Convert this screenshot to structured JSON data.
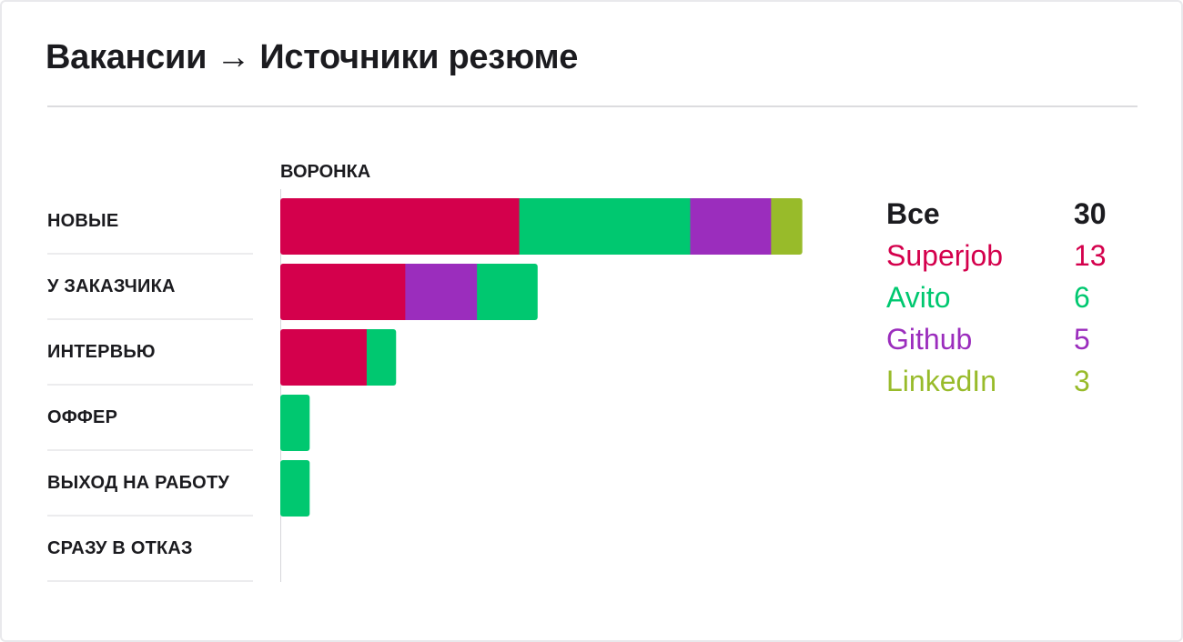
{
  "title": "Вакансии → Источники резюме",
  "funnel_label": "ВОРОНКА",
  "stages": [
    "НОВЫЕ",
    "У ЗАКАЗЧИКА",
    "ИНТЕРВЬЮ",
    "ОФФЕР",
    "ВЫХОД НА РАБОТУ",
    "СРАЗУ В ОТКАЗ"
  ],
  "legend": {
    "total": {
      "name": "Все",
      "value": "30"
    },
    "items": [
      {
        "name": "Superjob",
        "value": "13",
        "color": "#d4004c"
      },
      {
        "name": "Avito",
        "value": "6",
        "color": "#00c870"
      },
      {
        "name": "Github",
        "value": "5",
        "color": "#9b2dbd"
      },
      {
        "name": "LinkedIn",
        "value": "3",
        "color": "#98bb2a"
      }
    ]
  },
  "chart_data": {
    "type": "bar",
    "orientation": "horizontal",
    "stacked": true,
    "categories": [
      "НОВЫЕ",
      "У ЗАКАЗЧИКА",
      "ИНТЕРВЬЮ",
      "ОФФЕР",
      "ВЫХОД НА РАБОТУ",
      "СРАЗУ В ОТКАЗ"
    ],
    "xlim": [
      0,
      30
    ],
    "segments": [
      [
        {
          "source": "Superjob",
          "value": 13
        },
        {
          "source": "Avito",
          "value": 9.3
        },
        {
          "source": "Github",
          "value": 4.4
        },
        {
          "source": "LinkedIn",
          "value": 1.7
        }
      ],
      [
        {
          "source": "Superjob",
          "value": 6.8
        },
        {
          "source": "Github",
          "value": 3.9
        },
        {
          "source": "Avito",
          "value": 3.3
        }
      ],
      [
        {
          "source": "Superjob",
          "value": 4.7
        },
        {
          "source": "Avito",
          "value": 1.6
        }
      ],
      [
        {
          "source": "Avito",
          "value": 1.6
        }
      ],
      [
        {
          "source": "Avito",
          "value": 1.6
        }
      ],
      []
    ]
  }
}
